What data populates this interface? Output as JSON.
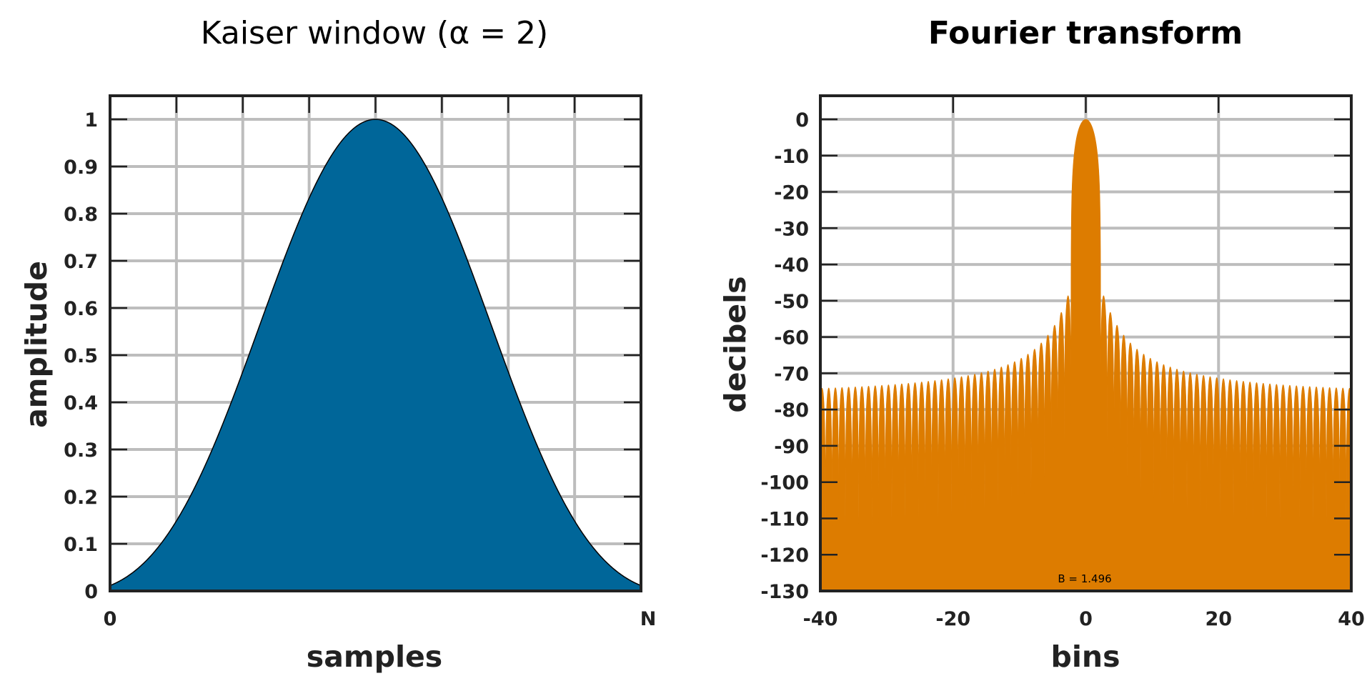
{
  "chart_data": [
    {
      "type": "area",
      "title": "Kaiser window (α = 2)",
      "xlabel": "samples",
      "ylabel": "amplitude",
      "xticks": [
        "0",
        "N"
      ],
      "yticks": [
        "0",
        "0.1",
        "0.2",
        "0.3",
        "0.4",
        "0.5",
        "0.6",
        "0.7",
        "0.8",
        "0.9",
        "1"
      ],
      "ylim": [
        0,
        1
      ],
      "xlim": [
        0,
        1
      ],
      "grid": true,
      "alpha": 2,
      "edge_value": 0.0115,
      "fill_color": "#006699",
      "line_color": "#000000"
    },
    {
      "type": "area",
      "title": "Fourier transform",
      "xlabel": "bins",
      "ylabel": "decibels",
      "xticks": [
        "-40",
        "-20",
        "0",
        "20",
        "40"
      ],
      "yticks": [
        "0",
        "-10",
        "-20",
        "-30",
        "-40",
        "-50",
        "-60",
        "-70",
        "-80",
        "-90",
        "-100",
        "-110",
        "-120",
        "-130"
      ],
      "xlim": [
        -40,
        40
      ],
      "ylim": [
        -130,
        0
      ],
      "grid": true,
      "annotation": "B = 1.496",
      "fill_color": "#dd7c00",
      "mainlobe_halfwidth_bins": 2.236,
      "first_sidelobe_db": -46,
      "far_sidelobe_db": -75
    }
  ]
}
